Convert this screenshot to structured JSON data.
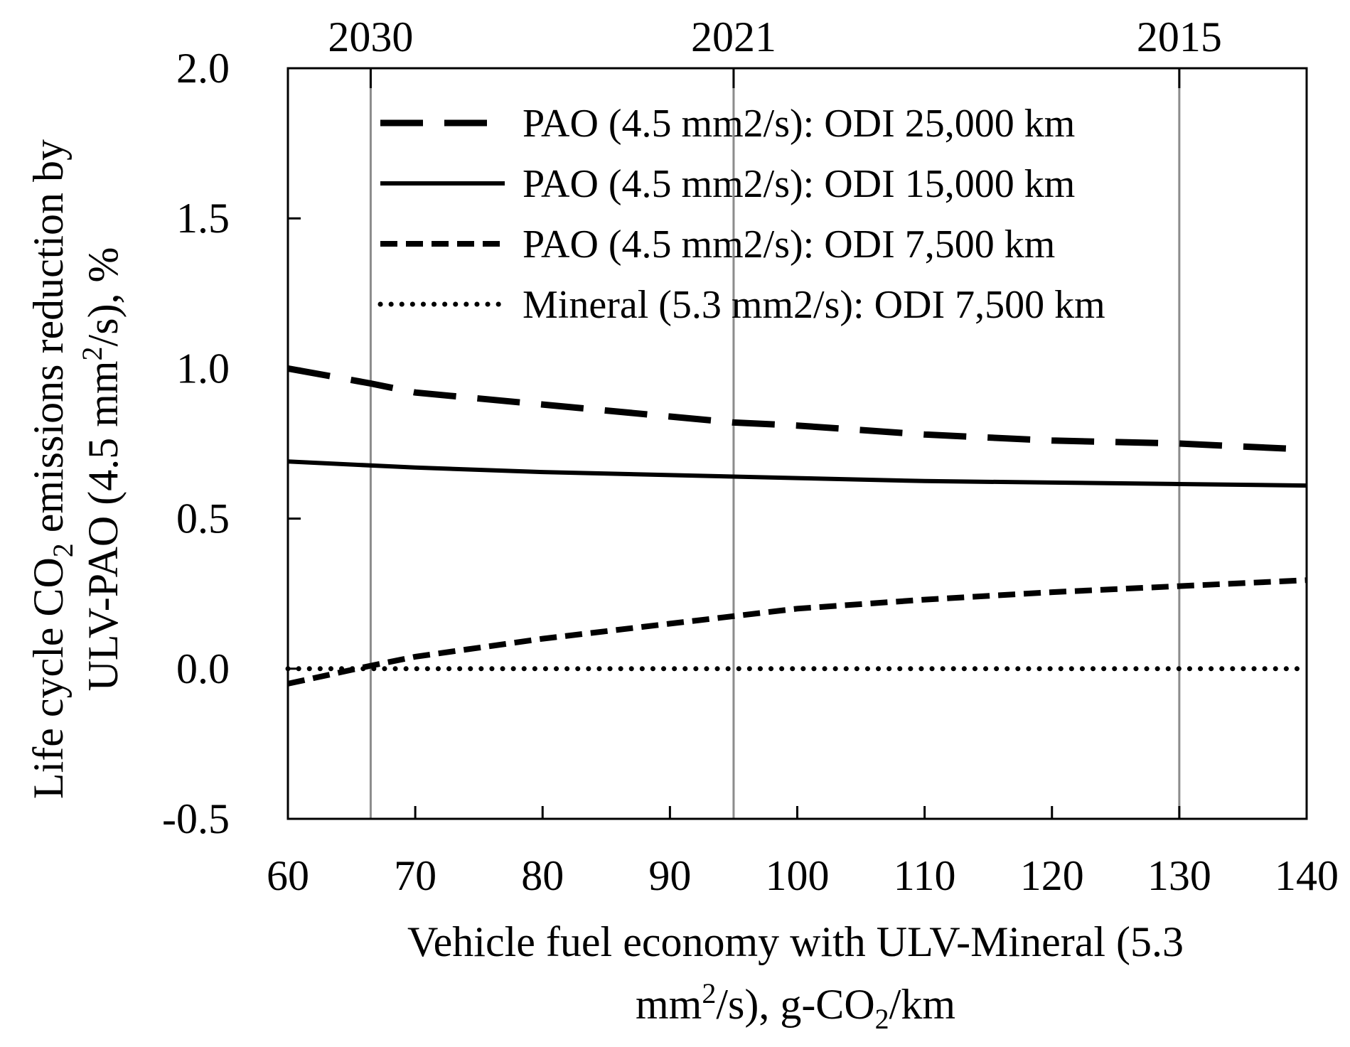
{
  "chart_data": {
    "type": "line",
    "title": "",
    "xlabel": {
      "line1": "Vehicle fuel economy with ULV-Mineral (5.3",
      "line2_pre": "mm",
      "line2_sup": "2",
      "line2_mid": "/s), g-CO",
      "line2_sub": "2",
      "line2_post": "/km"
    },
    "ylabel": {
      "line1_pre": "Life cycle CO",
      "line1_sub": "2",
      "line1_post": " emissions reduction by",
      "line2_pre": "ULV-PAO (4.5 mm",
      "line2_sup": "2",
      "line2_post": "/s), %"
    },
    "xlim": [
      60,
      140
    ],
    "ylim": [
      -0.5,
      2.0
    ],
    "x_ticks": [
      60,
      70,
      80,
      90,
      100,
      110,
      120,
      130,
      140
    ],
    "x_tick_labels": [
      "60",
      "70",
      "80",
      "90",
      "100",
      "110",
      "120",
      "130",
      "140"
    ],
    "y_ticks": [
      -0.5,
      0.0,
      0.5,
      1.0,
      1.5,
      2.0
    ],
    "y_tick_labels": [
      "-0.5",
      "0.0",
      "0.5",
      "1.0",
      "1.5",
      "2.0"
    ],
    "top_axis": [
      {
        "label": "2030",
        "x": 66.5
      },
      {
        "label": "2021",
        "x": 95
      },
      {
        "label": "2015",
        "x": 130
      }
    ],
    "legend_position": "top-right",
    "grid": "vertical lines at top-axis years",
    "series": [
      {
        "name": "PAO (4.5 mm2/s): ODI 25,000 km",
        "style": "long-dash",
        "x": [
          60,
          66.5,
          70,
          80,
          90,
          95,
          100,
          110,
          120,
          130,
          140
        ],
        "y": [
          1.0,
          0.95,
          0.92,
          0.88,
          0.84,
          0.82,
          0.81,
          0.78,
          0.76,
          0.75,
          0.73
        ]
      },
      {
        "name": "PAO (4.5 mm2/s): ODI 15,000 km",
        "style": "solid",
        "x": [
          60,
          70,
          80,
          90,
          100,
          110,
          120,
          130,
          140
        ],
        "y": [
          0.69,
          0.67,
          0.655,
          0.645,
          0.635,
          0.625,
          0.62,
          0.615,
          0.61
        ],
        "color": "#000000"
      },
      {
        "name": "PAO (4.5 mm2/s): ODI 7,500 km",
        "style": "short-dash",
        "x": [
          60,
          66.5,
          70,
          80,
          90,
          95,
          100,
          110,
          120,
          130,
          140
        ],
        "y": [
          -0.05,
          0.01,
          0.04,
          0.1,
          0.15,
          0.175,
          0.2,
          0.23,
          0.255,
          0.275,
          0.295
        ]
      },
      {
        "name": "Mineral (5.3 mm2/s): ODI 7,500 km",
        "style": "dotted",
        "x": [
          60,
          70,
          80,
          90,
          100,
          110,
          120,
          130,
          140
        ],
        "y": [
          0.0,
          0.0,
          0.0,
          0.0,
          0.0,
          0.0,
          0.0,
          0.0,
          0.0
        ]
      }
    ]
  }
}
